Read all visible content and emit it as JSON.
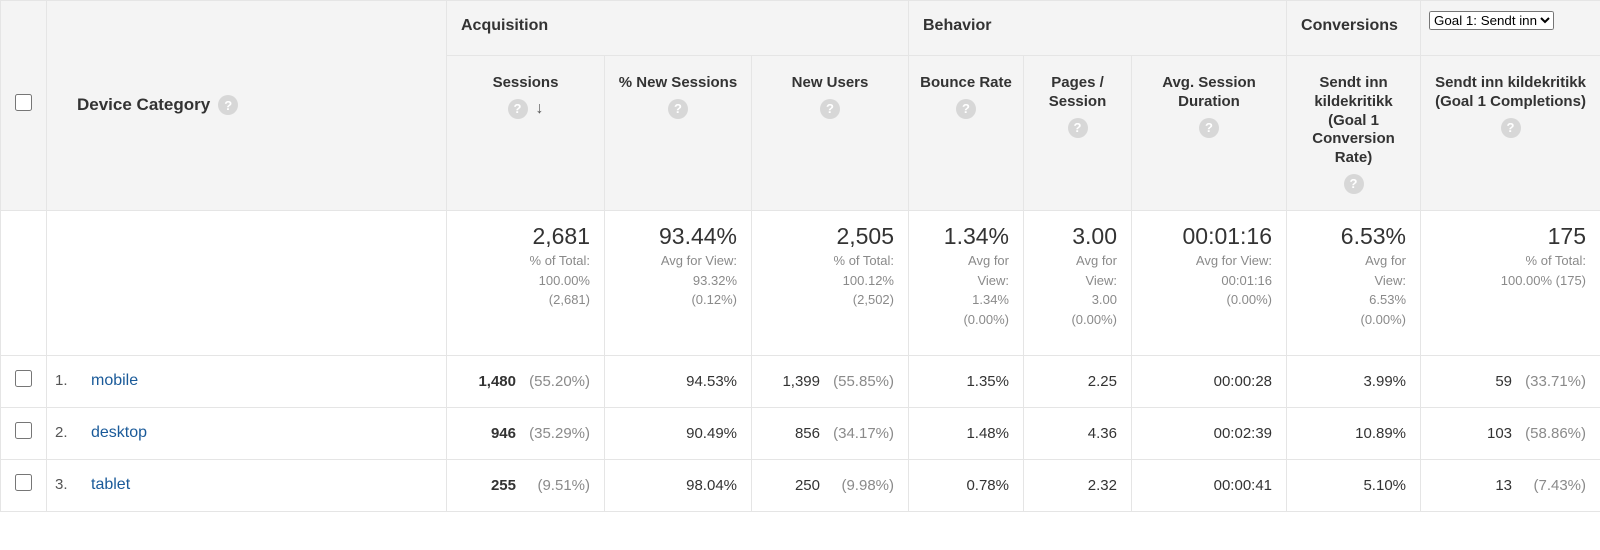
{
  "groups": {
    "acquisition": "Acquisition",
    "behavior": "Behavior",
    "conversions": "Conversions",
    "goal_selector": "Goal 1: Sendt inn"
  },
  "dimension": {
    "label": "Device Category"
  },
  "metrics": {
    "sessions": "Sessions",
    "pct_new_sessions": "% New Sessions",
    "new_users": "New Users",
    "bounce_rate": "Bounce Rate",
    "pages_session": "Pages / Session",
    "avg_duration": "Avg. Session Duration",
    "goal_rate": "Sendt inn kildekritikk (Goal 1 Conversion Rate)",
    "goal_completions": "Sendt inn kildekritikk (Goal 1 Completions)"
  },
  "summary": {
    "sessions": {
      "main": "2,681",
      "sub1": "% of Total:",
      "sub2": "100.00%",
      "sub3": "(2,681)"
    },
    "pct_new_sessions": {
      "main": "93.44%",
      "sub1": "Avg for View:",
      "sub2": "93.32%",
      "sub3": "(0.12%)"
    },
    "new_users": {
      "main": "2,505",
      "sub1": "% of Total:",
      "sub2": "100.12%",
      "sub3": "(2,502)"
    },
    "bounce_rate": {
      "main": "1.34%",
      "sub1": "Avg for",
      "sub2": "View:",
      "sub3": "1.34%",
      "sub4": "(0.00%)"
    },
    "pages_session": {
      "main": "3.00",
      "sub1": "Avg for",
      "sub2": "View:",
      "sub3": "3.00",
      "sub4": "(0.00%)"
    },
    "avg_duration": {
      "main": "00:01:16",
      "sub1": "Avg for View:",
      "sub2": "00:01:16",
      "sub3": "(0.00%)"
    },
    "goal_rate": {
      "main": "6.53%",
      "sub1": "Avg for",
      "sub2": "View:",
      "sub3": "6.53%",
      "sub4": "(0.00%)"
    },
    "goal_completions": {
      "main": "175",
      "sub1": "% of Total:",
      "sub2": "100.00% (175)"
    }
  },
  "rows": [
    {
      "idx": "1.",
      "name": "mobile",
      "sessions": "1,480",
      "sessions_pct": "(55.20%)",
      "pct_new": "94.53%",
      "new_users": "1,399",
      "new_users_pct": "(55.85%)",
      "bounce": "1.35%",
      "pages": "2.25",
      "duration": "00:00:28",
      "goal_rate": "3.99%",
      "goal_comp": "59",
      "goal_comp_pct": "(33.71%)"
    },
    {
      "idx": "2.",
      "name": "desktop",
      "sessions": "946",
      "sessions_pct": "(35.29%)",
      "pct_new": "90.49%",
      "new_users": "856",
      "new_users_pct": "(34.17%)",
      "bounce": "1.48%",
      "pages": "4.36",
      "duration": "00:02:39",
      "goal_rate": "10.89%",
      "goal_comp": "103",
      "goal_comp_pct": "(58.86%)"
    },
    {
      "idx": "3.",
      "name": "tablet",
      "sessions": "255",
      "sessions_pct": "(9.51%)",
      "pct_new": "98.04%",
      "new_users": "250",
      "new_users_pct": "(9.98%)",
      "bounce": "0.78%",
      "pages": "2.32",
      "duration": "00:00:41",
      "goal_rate": "5.10%",
      "goal_comp": "13",
      "goal_comp_pct": "(7.43%)"
    }
  ]
}
